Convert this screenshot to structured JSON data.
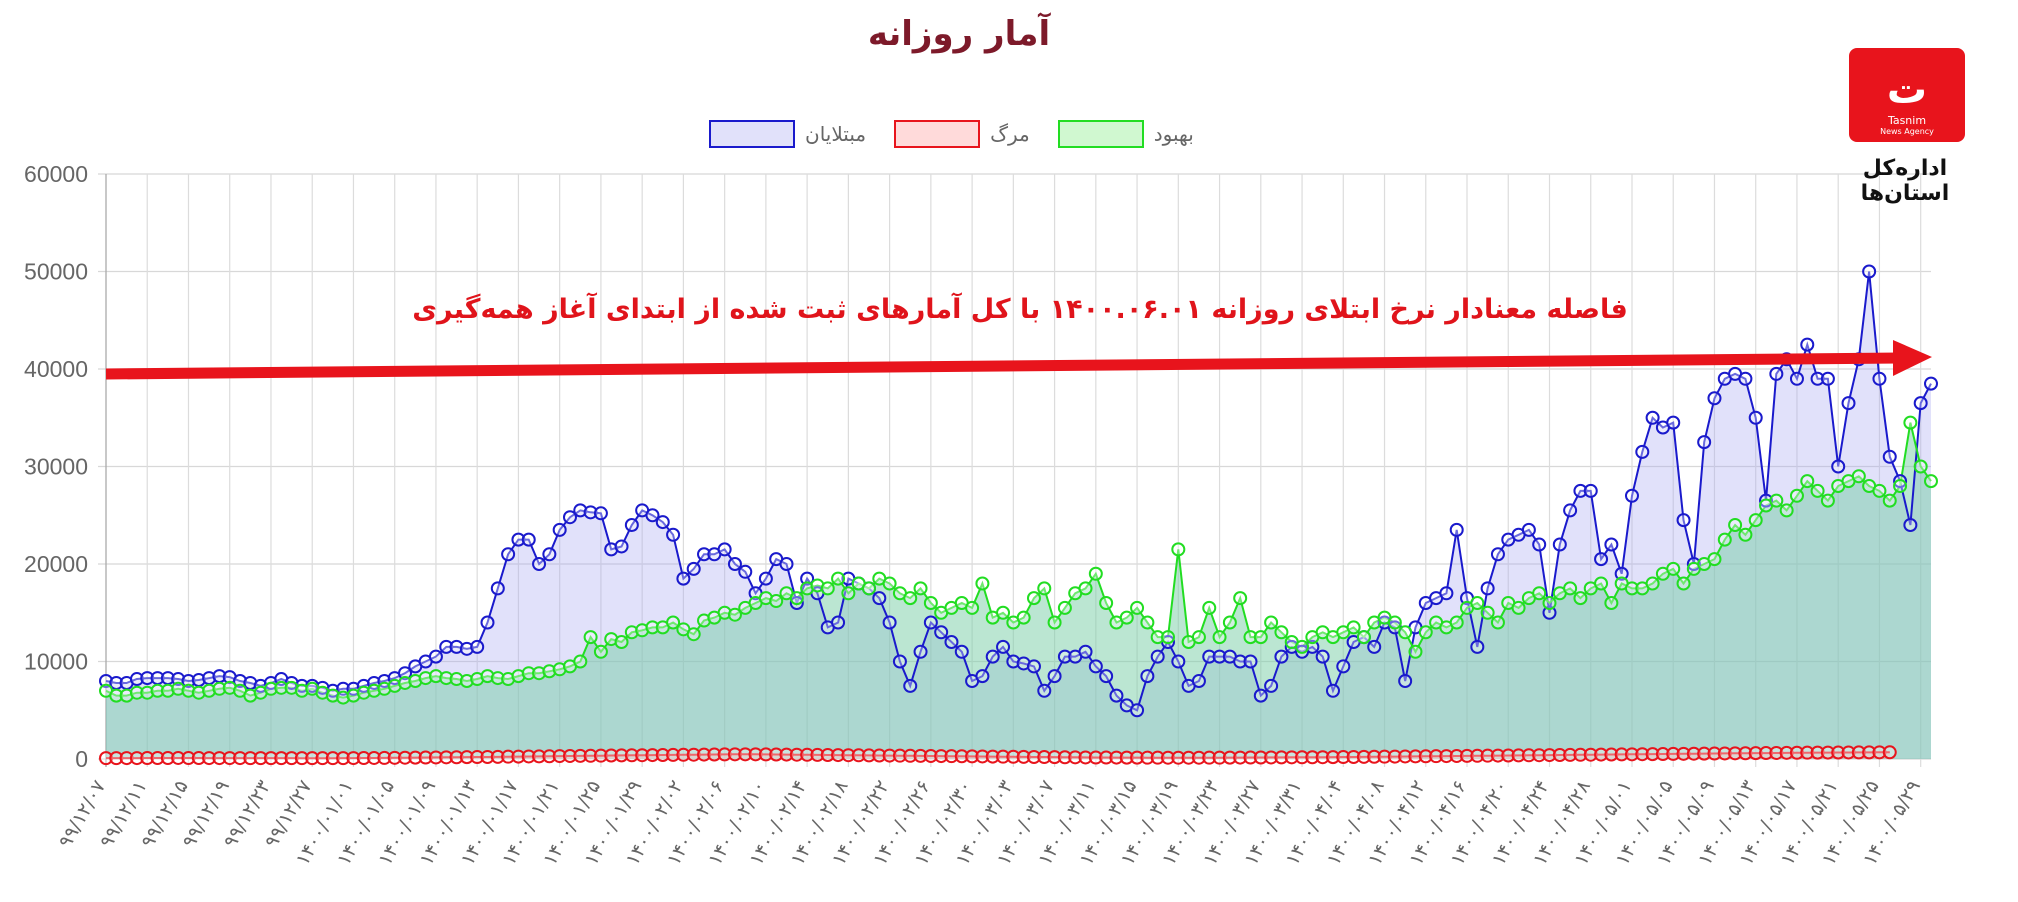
{
  "header": {
    "title": "آمار روزانه"
  },
  "logo": {
    "text": "Tasnim",
    "subtitle": "News Agency",
    "caption": "اداره‌کل استان‌ها"
  },
  "annotation": {
    "text": "فاصله معنادار نرخ ابتلای روزانه ۱۴۰۰.۰۶.۰۱ با کل آمارهای ثبت شده از ابتدای آغاز همه‌گیری",
    "arrow_color": "#e8141c"
  },
  "chart_data": {
    "type": "line",
    "title": "آمار روزانه",
    "legend_position": "top",
    "grid": true,
    "ylim": [
      0,
      60000
    ],
    "yticks": [
      "0",
      "10000",
      "20000",
      "30000",
      "40000",
      "50000",
      "60000"
    ],
    "x_tick_labels": [
      "۹۹/۱۲/۰۷",
      "۹۹/۱۲/۱۱",
      "۹۹/۱۲/۱۵",
      "۹۹/۱۲/۱۹",
      "۹۹/۱۲/۲۳",
      "۹۹/۱۲/۲۷",
      "۱۴۰۰/۰۱/۰۱",
      "۱۴۰۰/۰۱/۰۵",
      "۱۴۰۰/۰۱/۰۹",
      "۱۴۰۰/۰۱/۱۳",
      "۱۴۰۰/۰۱/۱۷",
      "۱۴۰۰/۰۱/۲۱",
      "۱۴۰۰/۰۱/۲۵",
      "۱۴۰۰/۰۱/۲۹",
      "۱۴۰۰/۰۲/۰۲",
      "۱۴۰۰/۰۲/۰۶",
      "۱۴۰۰/۰۲/۱۰",
      "۱۴۰۰/۰۲/۱۴",
      "۱۴۰۰/۰۲/۱۸",
      "۱۴۰۰/۰۲/۲۲",
      "۱۴۰۰/۰۲/۲۶",
      "۱۴۰۰/۰۲/۳۰",
      "۱۴۰۰/۰۳/۰۳",
      "۱۴۰۰/۰۳/۰۷",
      "۱۴۰۰/۰۳/۱۱",
      "۱۴۰۰/۰۳/۱۵",
      "۱۴۰۰/۰۳/۱۹",
      "۱۴۰۰/۰۳/۲۳",
      "۱۴۰۰/۰۳/۲۷",
      "۱۴۰۰/۰۳/۳۱",
      "۱۴۰۰/۰۴/۰۴",
      "۱۴۰۰/۰۴/۰۸",
      "۱۴۰۰/۰۴/۱۲",
      "۱۴۰۰/۰۴/۱۶",
      "۱۴۰۰/۰۴/۲۰",
      "۱۴۰۰/۰۴/۲۴",
      "۱۴۰۰/۰۴/۲۸",
      "۱۴۰۰/۰۵/۰۱",
      "۱۴۰۰/۰۵/۰۵",
      "۱۴۰۰/۰۵/۰۹",
      "۱۴۰۰/۰۵/۱۳",
      "۱۴۰۰/۰۵/۱۷",
      "۱۴۰۰/۰۵/۲۱",
      "۱۴۰۰/۰۵/۲۵",
      "۱۴۰۰/۰۵/۲۹"
    ],
    "x_tick_every": 4,
    "series": [
      {
        "name": "مبتلایان",
        "color": "#1a1acc",
        "fill": "rgba(170,170,240,0.35)",
        "values": [
          8000,
          7800,
          7800,
          8200,
          8300,
          8300,
          8300,
          8200,
          8000,
          8100,
          8300,
          8500,
          8400,
          8000,
          7800,
          7500,
          7800,
          8200,
          7800,
          7500,
          7500,
          7300,
          7000,
          7200,
          7200,
          7500,
          7800,
          8000,
          8300,
          8800,
          9500,
          10000,
          10500,
          11500,
          11500,
          11300,
          11500,
          14000,
          17500,
          21000,
          22500,
          22500,
          20000,
          21000,
          23500,
          24800,
          25500,
          25300,
          25200,
          21500,
          21800,
          24000,
          25500,
          25000,
          24300,
          23000,
          18500,
          19500,
          21000,
          21000,
          21500,
          20000,
          19200,
          17000,
          18500,
          20500,
          20000,
          16000,
          18500,
          17000,
          13500,
          14000,
          18500,
          18000,
          17500,
          16500,
          14000,
          10000,
          7500,
          11000,
          14000,
          13000,
          12000,
          11000,
          8000,
          8500,
          10500,
          11500,
          10000,
          9800,
          9500,
          7000,
          8500,
          10500,
          10500,
          11000,
          9500,
          8500,
          6500,
          5500,
          5000,
          8500,
          10500,
          12000,
          10000,
          7500,
          8000,
          10500,
          10500,
          10500,
          10000,
          10000,
          6500,
          7500,
          10500,
          11500,
          11000,
          11500,
          10500,
          7000,
          9500,
          12000,
          12500,
          11500,
          14000,
          13500,
          8000,
          13500,
          16000,
          16500,
          17000,
          23500,
          16500,
          11500,
          17500,
          21000,
          22500,
          23000,
          23500,
          22000,
          15000,
          22000,
          25500,
          27500,
          27500,
          20500,
          22000,
          19000,
          27000,
          31500,
          35000,
          34000,
          34500,
          24500,
          20000,
          32500,
          37000,
          39000,
          39500,
          39000,
          35000,
          26500,
          39500,
          41000,
          39000,
          42500,
          39000,
          39000,
          30000,
          36500,
          41000,
          50000,
          39000,
          31000,
          28500,
          24000,
          36500,
          38500
        ]
      },
      {
        "name": "مرگ",
        "color": "#e8141c",
        "fill": "rgba(255,150,150,0.35)",
        "values": [
          90,
          90,
          95,
          95,
          100,
          100,
          100,
          105,
          100,
          100,
          95,
          95,
          95,
          95,
          90,
          90,
          90,
          90,
          90,
          85,
          85,
          85,
          85,
          90,
          95,
          100,
          105,
          110,
          120,
          130,
          140,
          150,
          160,
          170,
          180,
          190,
          200,
          210,
          220,
          240,
          250,
          260,
          270,
          280,
          300,
          310,
          320,
          330,
          340,
          360,
          370,
          380,
          390,
          400,
          410,
          420,
          430,
          440,
          450,
          460,
          470,
          480,
          480,
          480,
          470,
          460,
          450,
          440,
          430,
          420,
          410,
          400,
          390,
          380,
          370,
          360,
          350,
          340,
          330,
          320,
          310,
          300,
          290,
          280,
          270,
          260,
          250,
          240,
          230,
          220,
          210,
          200,
          190,
          180,
          170,
          160,
          150,
          150,
          145,
          140,
          140,
          135,
          135,
          130,
          130,
          130,
          130,
          135,
          135,
          140,
          145,
          150,
          155,
          160,
          165,
          170,
          175,
          180,
          185,
          190,
          200,
          210,
          220,
          230,
          240,
          250,
          260,
          270,
          280,
          290,
          300,
          310,
          320,
          330,
          340,
          350,
          360,
          370,
          380,
          390,
          400,
          410,
          420,
          430,
          440,
          450,
          460,
          470,
          480,
          490,
          500,
          510,
          520,
          530,
          540,
          550,
          560,
          570,
          580,
          590,
          600,
          610,
          620,
          630,
          640,
          650,
          655,
          660,
          665,
          670,
          675,
          680,
          685,
          690
        ]
      },
      {
        "name": "بهبود",
        "color": "#22dd22",
        "fill": "rgba(120,205,165,0.5)",
        "values": [
          7000,
          6500,
          6500,
          6800,
          6800,
          7000,
          7000,
          7200,
          7000,
          6800,
          7000,
          7200,
          7300,
          7000,
          6500,
          6800,
          7200,
          7300,
          7300,
          7000,
          7200,
          6800,
          6500,
          6300,
          6500,
          6800,
          7000,
          7200,
          7500,
          7800,
          8000,
          8300,
          8500,
          8300,
          8200,
          8000,
          8200,
          8500,
          8300,
          8200,
          8500,
          8800,
          8800,
          9000,
          9200,
          9500,
          10000,
          12500,
          11000,
          12300,
          12000,
          13000,
          13200,
          13500,
          13500,
          14000,
          13300,
          12800,
          14200,
          14500,
          15000,
          14800,
          15500,
          16000,
          16500,
          16200,
          17000,
          16500,
          17500,
          17800,
          17500,
          18500,
          17000,
          18000,
          17500,
          18500,
          18000,
          17000,
          16500,
          17500,
          16000,
          15000,
          15500,
          16000,
          15500,
          18000,
          14500,
          15000,
          14000,
          14500,
          16500,
          17500,
          14000,
          15500,
          17000,
          17500,
          19000,
          16000,
          14000,
          14500,
          15500,
          14000,
          12500,
          12500,
          21500,
          12000,
          12500,
          15500,
          12500,
          14000,
          16500,
          12500,
          12500,
          14000,
          13000,
          12000,
          11500,
          12500,
          13000,
          12500,
          13000,
          13500,
          12500,
          14000,
          14500,
          14000,
          13000,
          11000,
          13000,
          14000,
          13500,
          14000,
          15500,
          16000,
          15000,
          14000,
          16000,
          15500,
          16500,
          17000,
          16000,
          17000,
          17500,
          16500,
          17500,
          18000,
          16000,
          18000,
          17500,
          17500,
          18000,
          19000,
          19500,
          18000,
          19500,
          20000,
          20500,
          22500,
          24000,
          23000,
          24500,
          26000,
          26500,
          25500,
          27000,
          28500,
          27500,
          26500,
          28000,
          28500,
          29000,
          28000,
          27500,
          26500,
          28000,
          34500,
          30000,
          28500
        ]
      }
    ]
  }
}
